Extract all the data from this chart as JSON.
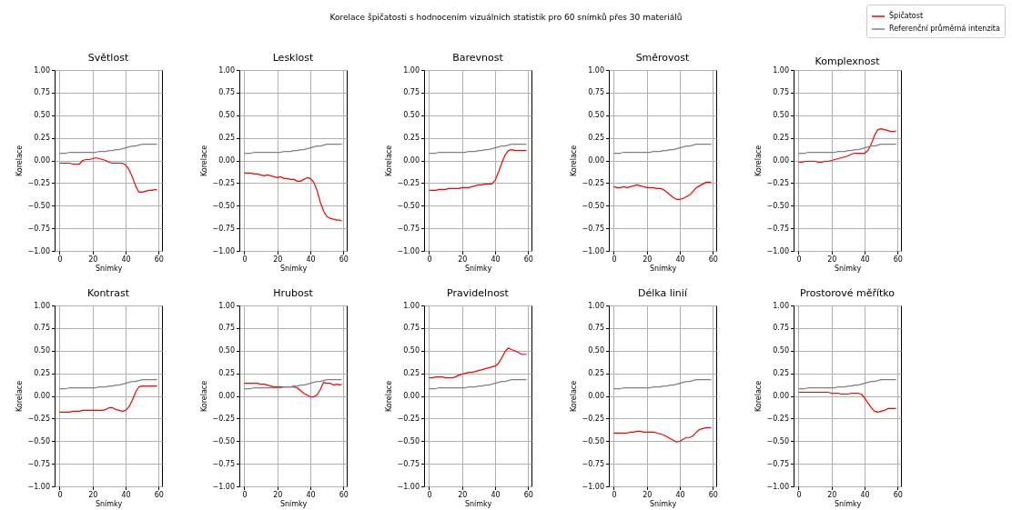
{
  "chart_data": [
    {
      "type": "line",
      "title": "Světlost",
      "annotations": [
        "Korelace špičatosti s hodnocením vizuálních statistik pro 60 snímků přes 30 materiálů"
      ],
      "xlabel": "Snímky",
      "ylabel": "Korelace",
      "grid": true,
      "xlim": [
        -3,
        62
      ],
      "xticks": [
        0,
        20,
        40,
        60
      ],
      "ylim": [
        -1,
        1
      ],
      "yticks": [
        {
          "value": -1,
          "label": "−1.00"
        },
        {
          "value": -0.75,
          "label": "−0.75"
        },
        {
          "value": -0.5,
          "label": "−0.50"
        },
        {
          "value": -0.25,
          "label": "−0.25"
        },
        {
          "value": 0,
          "label": "0.00"
        },
        {
          "value": 0.25,
          "label": "0.25"
        },
        {
          "value": 0.5,
          "label": "0.50"
        },
        {
          "value": 0.75,
          "label": "0.75"
        },
        {
          "value": 1,
          "label": "1.00"
        }
      ],
      "x": [
        0,
        2,
        4,
        6,
        8,
        10,
        12,
        14,
        16,
        18,
        20,
        22,
        24,
        26,
        28,
        30,
        32,
        34,
        36,
        38,
        40,
        42,
        44,
        46,
        48,
        50,
        52,
        54,
        56,
        58,
        59
      ],
      "series": [
        {
          "color": "#ff0000",
          "values": [
            -0.03,
            -0.03,
            -0.03,
            -0.03,
            -0.04,
            -0.04,
            -0.04,
            0.0,
            0.01,
            0.01,
            0.02,
            0.03,
            0.02,
            0.01,
            0.0,
            -0.02,
            -0.03,
            -0.03,
            -0.03,
            -0.03,
            -0.05,
            -0.1,
            -0.18,
            -0.28,
            -0.35,
            -0.35,
            -0.34,
            -0.33,
            -0.33,
            -0.32,
            -0.33
          ]
        },
        {
          "color": "#808080",
          "values": [
            0.08,
            0.08,
            0.08,
            0.09,
            0.09,
            0.09,
            0.09,
            0.09,
            0.09,
            0.09,
            0.09,
            0.09,
            0.1,
            0.1,
            0.1,
            0.11,
            0.11,
            0.12,
            0.12,
            0.13,
            0.14,
            0.15,
            0.16,
            0.16,
            0.17,
            0.18,
            0.18,
            0.18,
            0.18,
            0.18,
            0.18
          ]
        }
      ]
    },
    {
      "type": "line",
      "title": "Lesklost",
      "xlabel": "Snímky",
      "ylabel": "Korelace",
      "grid": true,
      "xlim": [
        -3,
        62
      ],
      "xticks": [
        0,
        20,
        40,
        60
      ],
      "ylim": [
        -1,
        1
      ],
      "yticks": [
        {
          "value": -1,
          "label": "−1.00"
        },
        {
          "value": -0.75,
          "label": "−0.75"
        },
        {
          "value": -0.5,
          "label": "−0.50"
        },
        {
          "value": -0.25,
          "label": "−0.25"
        },
        {
          "value": 0,
          "label": "0.00"
        },
        {
          "value": 0.25,
          "label": "0.25"
        },
        {
          "value": 0.5,
          "label": "0.50"
        },
        {
          "value": 0.75,
          "label": "0.75"
        },
        {
          "value": 1,
          "label": "1.00"
        }
      ],
      "x": [
        0,
        2,
        4,
        6,
        8,
        10,
        12,
        14,
        16,
        18,
        20,
        22,
        24,
        26,
        28,
        30,
        32,
        34,
        36,
        38,
        40,
        42,
        44,
        46,
        48,
        50,
        52,
        54,
        56,
        58,
        59
      ],
      "series": [
        {
          "color": "#ff0000",
          "values": [
            -0.14,
            -0.14,
            -0.14,
            -0.15,
            -0.15,
            -0.16,
            -0.17,
            -0.16,
            -0.17,
            -0.18,
            -0.19,
            -0.18,
            -0.2,
            -0.2,
            -0.21,
            -0.21,
            -0.23,
            -0.23,
            -0.21,
            -0.19,
            -0.2,
            -0.24,
            -0.33,
            -0.46,
            -0.56,
            -0.62,
            -0.64,
            -0.65,
            -0.66,
            -0.66,
            -0.67
          ]
        },
        {
          "color": "#808080",
          "values": [
            0.08,
            0.08,
            0.08,
            0.09,
            0.09,
            0.09,
            0.09,
            0.09,
            0.09,
            0.09,
            0.09,
            0.09,
            0.1,
            0.1,
            0.1,
            0.11,
            0.11,
            0.12,
            0.12,
            0.13,
            0.14,
            0.15,
            0.16,
            0.16,
            0.17,
            0.18,
            0.18,
            0.18,
            0.18,
            0.18,
            0.18
          ]
        }
      ]
    },
    {
      "type": "line",
      "title": "Barevnost",
      "xlabel": "Snímky",
      "ylabel": "Korelace",
      "grid": true,
      "xlim": [
        -3,
        62
      ],
      "xticks": [
        0,
        20,
        40,
        60
      ],
      "ylim": [
        -1,
        1
      ],
      "yticks": [
        {
          "value": -1,
          "label": "−1.00"
        },
        {
          "value": -0.75,
          "label": "−0.75"
        },
        {
          "value": -0.5,
          "label": "−0.50"
        },
        {
          "value": -0.25,
          "label": "−0.25"
        },
        {
          "value": 0,
          "label": "0.00"
        },
        {
          "value": 0.25,
          "label": "0.25"
        },
        {
          "value": 0.5,
          "label": "0.50"
        },
        {
          "value": 0.75,
          "label": "0.75"
        },
        {
          "value": 1,
          "label": "1.00"
        }
      ],
      "x": [
        0,
        2,
        4,
        6,
        8,
        10,
        12,
        14,
        16,
        18,
        20,
        22,
        24,
        26,
        28,
        30,
        32,
        34,
        36,
        38,
        40,
        42,
        44,
        46,
        48,
        50,
        52,
        54,
        56,
        58,
        59
      ],
      "series": [
        {
          "color": "#ff0000",
          "values": [
            -0.33,
            -0.33,
            -0.33,
            -0.32,
            -0.32,
            -0.32,
            -0.31,
            -0.31,
            -0.31,
            -0.31,
            -0.3,
            -0.3,
            -0.3,
            -0.29,
            -0.28,
            -0.27,
            -0.27,
            -0.26,
            -0.26,
            -0.26,
            -0.22,
            -0.13,
            -0.03,
            0.06,
            0.11,
            0.12,
            0.11,
            0.11,
            0.11,
            0.11,
            0.11
          ]
        },
        {
          "color": "#808080",
          "values": [
            0.08,
            0.08,
            0.08,
            0.09,
            0.09,
            0.09,
            0.09,
            0.09,
            0.09,
            0.09,
            0.09,
            0.09,
            0.1,
            0.1,
            0.1,
            0.11,
            0.11,
            0.12,
            0.12,
            0.13,
            0.14,
            0.15,
            0.16,
            0.16,
            0.17,
            0.18,
            0.18,
            0.18,
            0.18,
            0.18,
            0.18
          ]
        }
      ]
    },
    {
      "type": "line",
      "title": "Směrovost",
      "xlabel": "Snímky",
      "ylabel": "Korelace",
      "grid": true,
      "xlim": [
        -3,
        62
      ],
      "xticks": [
        0,
        20,
        40,
        60
      ],
      "ylim": [
        -1,
        1
      ],
      "yticks": [
        {
          "value": -1,
          "label": "−1.00"
        },
        {
          "value": -0.75,
          "label": "−0.75"
        },
        {
          "value": -0.5,
          "label": "−0.50"
        },
        {
          "value": -0.25,
          "label": "−0.25"
        },
        {
          "value": 0,
          "label": "0.00"
        },
        {
          "value": 0.25,
          "label": "0.25"
        },
        {
          "value": 0.5,
          "label": "0.50"
        },
        {
          "value": 0.75,
          "label": "0.75"
        },
        {
          "value": 1,
          "label": "1.00"
        }
      ],
      "x": [
        0,
        2,
        4,
        6,
        8,
        10,
        12,
        14,
        16,
        18,
        20,
        22,
        24,
        26,
        28,
        30,
        32,
        34,
        36,
        38,
        40,
        42,
        44,
        46,
        48,
        50,
        52,
        54,
        56,
        58,
        59
      ],
      "series": [
        {
          "color": "#ff0000",
          "values": [
            -0.29,
            -0.3,
            -0.3,
            -0.29,
            -0.3,
            -0.29,
            -0.28,
            -0.27,
            -0.28,
            -0.29,
            -0.3,
            -0.3,
            -0.3,
            -0.31,
            -0.31,
            -0.32,
            -0.35,
            -0.38,
            -0.41,
            -0.43,
            -0.43,
            -0.42,
            -0.4,
            -0.38,
            -0.34,
            -0.3,
            -0.28,
            -0.26,
            -0.24,
            -0.24,
            -0.24
          ]
        },
        {
          "color": "#808080",
          "values": [
            0.08,
            0.08,
            0.08,
            0.09,
            0.09,
            0.09,
            0.09,
            0.09,
            0.09,
            0.09,
            0.09,
            0.09,
            0.1,
            0.1,
            0.1,
            0.11,
            0.11,
            0.12,
            0.12,
            0.13,
            0.14,
            0.15,
            0.16,
            0.16,
            0.17,
            0.18,
            0.18,
            0.18,
            0.18,
            0.18,
            0.18
          ]
        }
      ]
    },
    {
      "type": "line",
      "title": "Komplexnost",
      "legend": "top right",
      "xlabel": "Snímky",
      "ylabel": "Korelace",
      "grid": true,
      "xlim": [
        -3,
        62
      ],
      "xticks": [
        0,
        20,
        40,
        60
      ],
      "ylim": [
        -1,
        1
      ],
      "yticks": [
        {
          "value": -1,
          "label": "−1.00"
        },
        {
          "value": -0.75,
          "label": "−0.75"
        },
        {
          "value": -0.5,
          "label": "−0.50"
        },
        {
          "value": -0.25,
          "label": "−0.25"
        },
        {
          "value": 0,
          "label": "0.00"
        },
        {
          "value": 0.25,
          "label": "0.25"
        },
        {
          "value": 0.5,
          "label": "0.50"
        },
        {
          "value": 0.75,
          "label": "0.75"
        },
        {
          "value": 1,
          "label": "1.00"
        }
      ],
      "x": [
        0,
        2,
        4,
        6,
        8,
        10,
        12,
        14,
        16,
        18,
        20,
        22,
        24,
        26,
        28,
        30,
        32,
        34,
        36,
        38,
        40,
        42,
        44,
        46,
        48,
        50,
        52,
        54,
        56,
        58,
        59
      ],
      "series": [
        {
          "name": "Špičatost",
          "color": "#ff0000",
          "values": [
            -0.02,
            -0.02,
            -0.01,
            -0.01,
            -0.01,
            -0.01,
            -0.02,
            -0.02,
            -0.01,
            -0.01,
            0.0,
            0.01,
            0.02,
            0.03,
            0.04,
            0.05,
            0.07,
            0.08,
            0.08,
            0.08,
            0.08,
            0.11,
            0.18,
            0.28,
            0.34,
            0.35,
            0.34,
            0.33,
            0.32,
            0.32,
            0.33
          ]
        },
        {
          "name": "Referenční průměrná intenzita",
          "color": "#808080",
          "values": [
            0.08,
            0.08,
            0.08,
            0.09,
            0.09,
            0.09,
            0.09,
            0.09,
            0.09,
            0.09,
            0.09,
            0.09,
            0.1,
            0.1,
            0.1,
            0.11,
            0.11,
            0.12,
            0.12,
            0.13,
            0.14,
            0.15,
            0.16,
            0.16,
            0.17,
            0.18,
            0.18,
            0.18,
            0.18,
            0.18,
            0.18
          ]
        }
      ]
    },
    {
      "type": "line",
      "title": "Kontrast",
      "xlabel": "Snímky",
      "ylabel": "Korelace",
      "grid": true,
      "xlim": [
        -3,
        62
      ],
      "xticks": [
        0,
        20,
        40,
        60
      ],
      "ylim": [
        -1,
        1
      ],
      "yticks": [
        {
          "value": -1,
          "label": "−1.00"
        },
        {
          "value": -0.75,
          "label": "−0.75"
        },
        {
          "value": -0.5,
          "label": "−0.50"
        },
        {
          "value": -0.25,
          "label": "−0.25"
        },
        {
          "value": 0,
          "label": "0.00"
        },
        {
          "value": 0.25,
          "label": "0.25"
        },
        {
          "value": 0.5,
          "label": "0.50"
        },
        {
          "value": 0.75,
          "label": "0.75"
        },
        {
          "value": 1,
          "label": "1.00"
        }
      ],
      "x": [
        0,
        2,
        4,
        6,
        8,
        10,
        12,
        14,
        16,
        18,
        20,
        22,
        24,
        26,
        28,
        30,
        32,
        34,
        36,
        38,
        40,
        42,
        44,
        46,
        48,
        50,
        52,
        54,
        56,
        58,
        59
      ],
      "series": [
        {
          "color": "#ff0000",
          "values": [
            -0.18,
            -0.18,
            -0.18,
            -0.18,
            -0.17,
            -0.17,
            -0.17,
            -0.16,
            -0.16,
            -0.16,
            -0.16,
            -0.16,
            -0.16,
            -0.16,
            -0.15,
            -0.13,
            -0.13,
            -0.15,
            -0.16,
            -0.17,
            -0.16,
            -0.12,
            -0.05,
            0.04,
            0.1,
            0.11,
            0.11,
            0.11,
            0.11,
            0.11,
            0.11
          ]
        },
        {
          "color": "#808080",
          "values": [
            0.08,
            0.08,
            0.08,
            0.09,
            0.09,
            0.09,
            0.09,
            0.09,
            0.09,
            0.09,
            0.09,
            0.09,
            0.1,
            0.1,
            0.1,
            0.11,
            0.11,
            0.12,
            0.12,
            0.13,
            0.14,
            0.15,
            0.16,
            0.16,
            0.17,
            0.18,
            0.18,
            0.18,
            0.18,
            0.18,
            0.18
          ]
        }
      ]
    },
    {
      "type": "line",
      "title": "Hrubost",
      "xlabel": "Snímky",
      "ylabel": "Korelace",
      "grid": true,
      "xlim": [
        -3,
        62
      ],
      "xticks": [
        0,
        20,
        40,
        60
      ],
      "ylim": [
        -1,
        1
      ],
      "yticks": [
        {
          "value": -1,
          "label": "−1.00"
        },
        {
          "value": -0.75,
          "label": "−0.75"
        },
        {
          "value": -0.5,
          "label": "−0.50"
        },
        {
          "value": -0.25,
          "label": "−0.25"
        },
        {
          "value": 0,
          "label": "0.00"
        },
        {
          "value": 0.25,
          "label": "0.25"
        },
        {
          "value": 0.5,
          "label": "0.50"
        },
        {
          "value": 0.75,
          "label": "0.75"
        },
        {
          "value": 1,
          "label": "1.00"
        }
      ],
      "x": [
        0,
        2,
        4,
        6,
        8,
        10,
        12,
        14,
        16,
        18,
        20,
        22,
        24,
        26,
        28,
        30,
        32,
        34,
        36,
        38,
        40,
        42,
        44,
        46,
        48,
        50,
        52,
        54,
        56,
        58,
        59
      ],
      "series": [
        {
          "color": "#ff0000",
          "values": [
            0.14,
            0.14,
            0.14,
            0.14,
            0.14,
            0.13,
            0.13,
            0.12,
            0.11,
            0.1,
            0.1,
            0.1,
            0.1,
            0.1,
            0.1,
            0.1,
            0.09,
            0.06,
            0.03,
            0.01,
            -0.01,
            -0.01,
            0.01,
            0.07,
            0.15,
            0.14,
            0.14,
            0.12,
            0.13,
            0.12,
            0.13
          ]
        },
        {
          "color": "#808080",
          "values": [
            0.08,
            0.08,
            0.08,
            0.09,
            0.09,
            0.09,
            0.09,
            0.09,
            0.09,
            0.09,
            0.09,
            0.09,
            0.1,
            0.1,
            0.1,
            0.11,
            0.11,
            0.12,
            0.12,
            0.13,
            0.14,
            0.15,
            0.16,
            0.16,
            0.17,
            0.18,
            0.18,
            0.18,
            0.18,
            0.18,
            0.18
          ]
        }
      ]
    },
    {
      "type": "line",
      "title": "Pravidelnost",
      "xlabel": "Snímky",
      "ylabel": "Korelace",
      "grid": true,
      "xlim": [
        -3,
        62
      ],
      "xticks": [
        0,
        20,
        40,
        60
      ],
      "ylim": [
        -1,
        1
      ],
      "yticks": [
        {
          "value": -1,
          "label": "−1.00"
        },
        {
          "value": -0.75,
          "label": "−0.75"
        },
        {
          "value": -0.5,
          "label": "−0.50"
        },
        {
          "value": -0.25,
          "label": "−0.25"
        },
        {
          "value": 0,
          "label": "0.00"
        },
        {
          "value": 0.25,
          "label": "0.25"
        },
        {
          "value": 0.5,
          "label": "0.50"
        },
        {
          "value": 0.75,
          "label": "0.75"
        },
        {
          "value": 1,
          "label": "1.00"
        }
      ],
      "x": [
        0,
        2,
        4,
        6,
        8,
        10,
        12,
        14,
        16,
        18,
        20,
        22,
        24,
        26,
        28,
        30,
        32,
        34,
        36,
        38,
        40,
        42,
        44,
        46,
        48,
        50,
        52,
        54,
        56,
        58,
        59
      ],
      "series": [
        {
          "color": "#ff0000",
          "values": [
            0.2,
            0.2,
            0.21,
            0.21,
            0.21,
            0.2,
            0.2,
            0.2,
            0.21,
            0.23,
            0.24,
            0.25,
            0.26,
            0.26,
            0.27,
            0.28,
            0.29,
            0.3,
            0.31,
            0.32,
            0.33,
            0.36,
            0.42,
            0.49,
            0.53,
            0.51,
            0.5,
            0.48,
            0.46,
            0.46,
            0.46
          ]
        },
        {
          "color": "#808080",
          "values": [
            0.08,
            0.08,
            0.08,
            0.09,
            0.09,
            0.09,
            0.09,
            0.09,
            0.09,
            0.09,
            0.09,
            0.09,
            0.1,
            0.1,
            0.1,
            0.11,
            0.11,
            0.12,
            0.12,
            0.13,
            0.14,
            0.15,
            0.16,
            0.16,
            0.17,
            0.18,
            0.18,
            0.18,
            0.18,
            0.18,
            0.18
          ]
        }
      ]
    },
    {
      "type": "line",
      "title": "Délka linií",
      "xlabel": "Snímky",
      "ylabel": "Korelace",
      "grid": true,
      "xlim": [
        -3,
        62
      ],
      "xticks": [
        0,
        20,
        40,
        60
      ],
      "ylim": [
        -1,
        1
      ],
      "yticks": [
        {
          "value": -1,
          "label": "−1.00"
        },
        {
          "value": -0.75,
          "label": "−0.75"
        },
        {
          "value": -0.5,
          "label": "−0.50"
        },
        {
          "value": -0.25,
          "label": "−0.25"
        },
        {
          "value": 0,
          "label": "0.00"
        },
        {
          "value": 0.25,
          "label": "0.25"
        },
        {
          "value": 0.5,
          "label": "0.50"
        },
        {
          "value": 0.75,
          "label": "0.75"
        },
        {
          "value": 1,
          "label": "1.00"
        }
      ],
      "x": [
        0,
        2,
        4,
        6,
        8,
        10,
        12,
        14,
        16,
        18,
        20,
        22,
        24,
        26,
        28,
        30,
        32,
        34,
        36,
        38,
        40,
        42,
        44,
        46,
        48,
        50,
        52,
        54,
        56,
        58,
        59
      ],
      "series": [
        {
          "color": "#ff0000",
          "values": [
            -0.41,
            -0.41,
            -0.41,
            -0.41,
            -0.41,
            -0.4,
            -0.4,
            -0.39,
            -0.39,
            -0.4,
            -0.4,
            -0.4,
            -0.4,
            -0.41,
            -0.42,
            -0.43,
            -0.45,
            -0.47,
            -0.49,
            -0.51,
            -0.5,
            -0.48,
            -0.46,
            -0.46,
            -0.44,
            -0.4,
            -0.37,
            -0.36,
            -0.35,
            -0.35,
            -0.35
          ]
        },
        {
          "color": "#808080",
          "values": [
            0.08,
            0.08,
            0.08,
            0.09,
            0.09,
            0.09,
            0.09,
            0.09,
            0.09,
            0.09,
            0.09,
            0.09,
            0.1,
            0.1,
            0.1,
            0.11,
            0.11,
            0.12,
            0.12,
            0.13,
            0.14,
            0.15,
            0.16,
            0.16,
            0.17,
            0.18,
            0.18,
            0.18,
            0.18,
            0.18,
            0.18
          ]
        }
      ]
    },
    {
      "type": "line",
      "title": "Prostorové měřítko",
      "xlabel": "Snímky",
      "ylabel": "Korelace",
      "grid": true,
      "xlim": [
        -3,
        62
      ],
      "xticks": [
        0,
        20,
        40,
        60
      ],
      "ylim": [
        -1,
        1
      ],
      "yticks": [
        {
          "value": -1,
          "label": "−1.00"
        },
        {
          "value": -0.75,
          "label": "−0.75"
        },
        {
          "value": -0.5,
          "label": "−0.50"
        },
        {
          "value": -0.25,
          "label": "−0.25"
        },
        {
          "value": 0,
          "label": "0.00"
        },
        {
          "value": 0.25,
          "label": "0.25"
        },
        {
          "value": 0.5,
          "label": "0.50"
        },
        {
          "value": 0.75,
          "label": "0.75"
        },
        {
          "value": 1,
          "label": "1.00"
        }
      ],
      "x": [
        0,
        2,
        4,
        6,
        8,
        10,
        12,
        14,
        16,
        18,
        20,
        22,
        24,
        26,
        28,
        30,
        32,
        34,
        36,
        38,
        40,
        42,
        44,
        46,
        48,
        50,
        52,
        54,
        56,
        58,
        59
      ],
      "series": [
        {
          "color": "#ff0000",
          "values": [
            0.04,
            0.04,
            0.04,
            0.04,
            0.04,
            0.04,
            0.04,
            0.04,
            0.04,
            0.04,
            0.03,
            0.03,
            0.03,
            0.02,
            0.02,
            0.02,
            0.03,
            0.03,
            0.03,
            0.02,
            -0.02,
            -0.08,
            -0.13,
            -0.17,
            -0.18,
            -0.17,
            -0.16,
            -0.14,
            -0.14,
            -0.14,
            -0.14
          ]
        },
        {
          "color": "#808080",
          "values": [
            0.08,
            0.08,
            0.08,
            0.09,
            0.09,
            0.09,
            0.09,
            0.09,
            0.09,
            0.09,
            0.09,
            0.09,
            0.1,
            0.1,
            0.1,
            0.11,
            0.11,
            0.12,
            0.12,
            0.13,
            0.14,
            0.15,
            0.16,
            0.16,
            0.17,
            0.18,
            0.18,
            0.18,
            0.18,
            0.18,
            0.18
          ]
        }
      ]
    }
  ]
}
